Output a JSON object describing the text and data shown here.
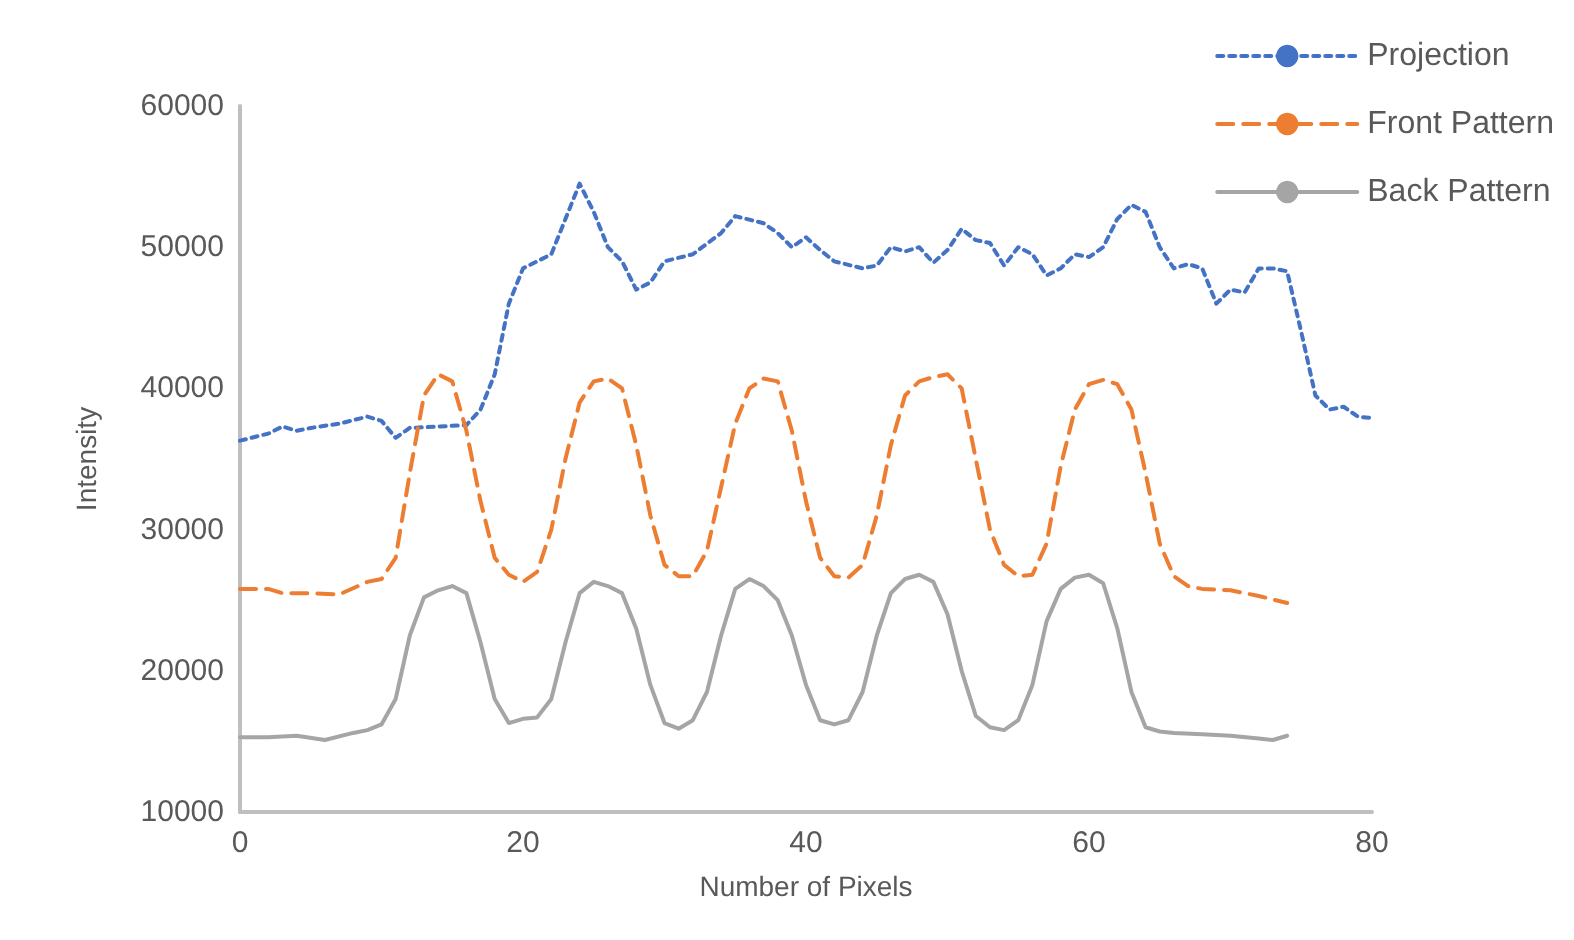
{
  "chart_data": {
    "type": "line",
    "xlabel": "Number of Pixels",
    "ylabel": "Intensity",
    "xlim": [
      0,
      80
    ],
    "xticks": [
      0,
      20,
      40,
      60,
      80
    ],
    "ylim": [
      10000,
      60000
    ],
    "yticks": [
      10000,
      20000,
      30000,
      40000,
      50000,
      60000
    ],
    "grid": false,
    "legend": "top right",
    "marker": "none",
    "series": [
      {
        "name": "Projection",
        "color": "#4472c4",
        "line_style": "dotted",
        "x": [
          0,
          2,
          3,
          4,
          5,
          7,
          9,
          10,
          11,
          12,
          14,
          16,
          17,
          18,
          19,
          20,
          22,
          23,
          24,
          25,
          26,
          27,
          28,
          29,
          30,
          32,
          34,
          35,
          37,
          38,
          39,
          40,
          41,
          42,
          44,
          45,
          46,
          47,
          48,
          49,
          50,
          51,
          52,
          53,
          54,
          55,
          56,
          57,
          58,
          59,
          60,
          61,
          62,
          63,
          64,
          65,
          66,
          67,
          68,
          69,
          70,
          71,
          72,
          73,
          74,
          75,
          76,
          77,
          78,
          79,
          80
        ],
        "values": [
          36300,
          36800,
          37300,
          37000,
          37200,
          37500,
          38000,
          37700,
          36500,
          37200,
          37300,
          37400,
          38500,
          41000,
          46000,
          48500,
          49500,
          52000,
          54500,
          52500,
          50000,
          49000,
          47000,
          47500,
          49000,
          49500,
          51000,
          52200,
          51700,
          51000,
          50000,
          50700,
          49800,
          49000,
          48500,
          48700,
          50000,
          49700,
          50000,
          48900,
          49800,
          51300,
          50500,
          50300,
          48700,
          50000,
          49500,
          48000,
          48500,
          49500,
          49300,
          50000,
          52000,
          53000,
          52500,
          50000,
          48500,
          48800,
          48500,
          46000,
          47000,
          46800,
          48500,
          48500,
          48300,
          44000,
          39500,
          38500,
          38700,
          38000,
          37900
        ]
      },
      {
        "name": "Front Pattern",
        "color": "#ed7d31",
        "line_style": "dashed",
        "x": [
          0,
          2,
          3,
          5,
          7,
          9,
          10,
          11,
          12,
          13,
          14,
          15,
          16,
          17,
          18,
          19,
          20,
          21,
          22,
          23,
          24,
          25,
          26,
          27,
          28,
          29,
          30,
          31,
          32,
          33,
          34,
          35,
          36,
          37,
          38,
          39,
          40,
          41,
          42,
          43,
          44,
          45,
          46,
          47,
          48,
          49,
          50,
          51,
          52,
          53,
          54,
          55,
          56,
          57,
          58,
          59,
          60,
          61,
          62,
          63,
          64,
          65,
          66,
          67,
          68,
          70,
          72,
          74
        ],
        "values": [
          25800,
          25800,
          25500,
          25500,
          25400,
          26300,
          26500,
          28000,
          34000,
          39500,
          41000,
          40500,
          37000,
          32000,
          28000,
          26800,
          26300,
          27000,
          30000,
          35000,
          39000,
          40500,
          40700,
          40000,
          36000,
          31000,
          27500,
          26700,
          26700,
          28500,
          33000,
          37500,
          40000,
          40700,
          40500,
          37000,
          32000,
          28000,
          26700,
          26600,
          27500,
          31000,
          36000,
          39500,
          40500,
          40800,
          41000,
          40000,
          35000,
          30000,
          27500,
          26700,
          26800,
          29000,
          34500,
          38500,
          40300,
          40600,
          40300,
          38500,
          34000,
          29000,
          26700,
          26000,
          25800,
          25700,
          25300,
          24800
        ]
      },
      {
        "name": "Back Pattern",
        "color": "#a5a5a5",
        "line_style": "solid",
        "x": [
          0,
          2,
          4,
          6,
          8,
          9,
          10,
          11,
          12,
          13,
          14,
          15,
          16,
          17,
          18,
          19,
          20,
          21,
          22,
          23,
          24,
          25,
          26,
          27,
          28,
          29,
          30,
          31,
          32,
          33,
          34,
          35,
          36,
          37,
          38,
          39,
          40,
          41,
          42,
          43,
          44,
          45,
          46,
          47,
          48,
          49,
          50,
          51,
          52,
          53,
          54,
          55,
          56,
          57,
          58,
          59,
          60,
          61,
          62,
          63,
          64,
          65,
          66,
          68,
          70,
          72,
          73,
          74
        ],
        "values": [
          15300,
          15300,
          15400,
          15100,
          15600,
          15800,
          16200,
          18000,
          22500,
          25200,
          25700,
          26000,
          25500,
          22000,
          18000,
          16300,
          16600,
          16700,
          18000,
          22000,
          25500,
          26300,
          26000,
          25500,
          23000,
          19000,
          16300,
          15900,
          16500,
          18500,
          22500,
          25800,
          26500,
          26000,
          25000,
          22500,
          19000,
          16500,
          16200,
          16500,
          18500,
          22500,
          25500,
          26500,
          26800,
          26300,
          24000,
          20000,
          16800,
          16000,
          15800,
          16500,
          19000,
          23500,
          25800,
          26600,
          26800,
          26200,
          23000,
          18500,
          16000,
          15700,
          15600,
          15500,
          15400,
          15200,
          15100,
          15400
        ]
      }
    ]
  }
}
